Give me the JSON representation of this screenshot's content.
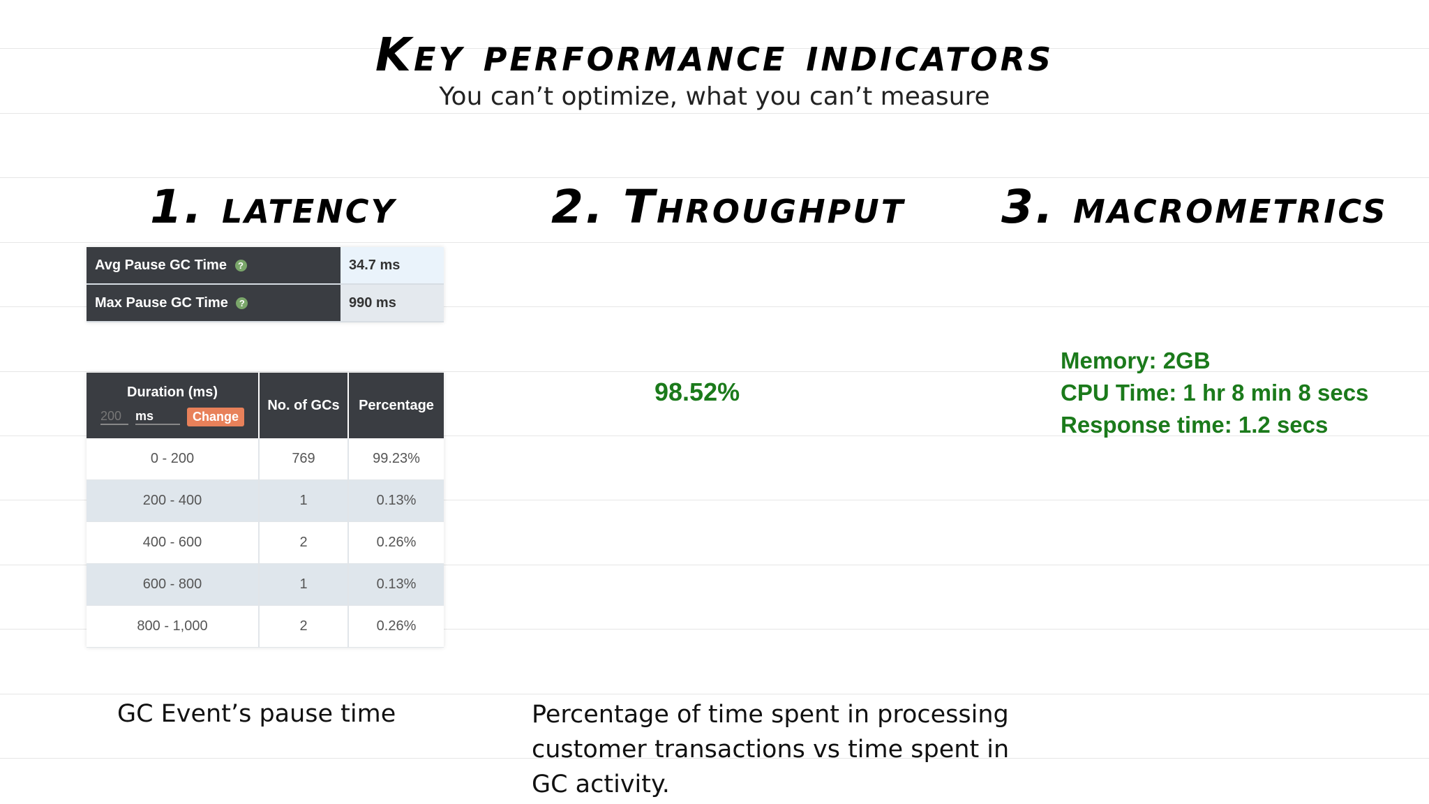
{
  "header": {
    "title": "Key performance indicators",
    "subtitle": "You can’t optimize, what you can’t measure"
  },
  "sections": {
    "latency": {
      "heading": "1. latency",
      "caption": "GC Event’s pause time"
    },
    "throughput": {
      "heading": "2. Throughput",
      "value": "98.52%",
      "caption_lines": [
        "Percentage of time spent in processing",
        "customer transactions vs time spent in",
        "GC activity."
      ]
    },
    "macrometrics": {
      "heading": "3. macrometrics",
      "lines": [
        "Memory: 2GB",
        "CPU Time: 1 hr 8 min 8 secs",
        "Response time: 1.2 secs"
      ]
    }
  },
  "pause_table": {
    "rows": [
      {
        "label": "Avg Pause GC Time",
        "value": "34.7 ms"
      },
      {
        "label": "Max Pause GC Time",
        "value": "990 ms"
      }
    ],
    "help_icon": "question-circle-icon"
  },
  "duration_table": {
    "headers": {
      "duration": "Duration (ms)",
      "count": "No. of GCs",
      "percentage": "Percentage"
    },
    "bucket_input_placeholder": "200",
    "unit_value": "ms",
    "change_label": "Change",
    "rows": [
      {
        "range": "0 - 200",
        "count": "769",
        "percentage": "99.23%"
      },
      {
        "range": "200 - 400",
        "count": "1",
        "percentage": "0.13%"
      },
      {
        "range": "400 - 600",
        "count": "2",
        "percentage": "0.26%"
      },
      {
        "range": "600 - 800",
        "count": "1",
        "percentage": "0.13%"
      },
      {
        "range": "800 - 1,000",
        "count": "2",
        "percentage": "0.26%"
      }
    ]
  },
  "colors": {
    "metric_green": "#1b7a1b",
    "table_header": "#3a3d42",
    "change_button": "#e8815a"
  }
}
